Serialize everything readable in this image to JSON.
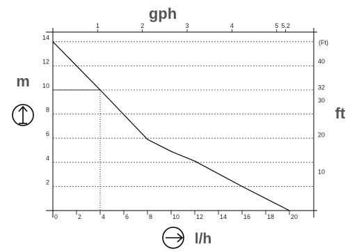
{
  "chart_data": {
    "type": "line",
    "x_bottom_label": "l/h",
    "x_top_label": "gph",
    "y_left_label": "m",
    "y_right_label": "ft",
    "y_right_unit": "(Ft)",
    "x_bottom_ticks": [
      "0",
      "2",
      "4",
      "6",
      "8",
      "10",
      "12",
      "14",
      "16",
      "18",
      "20"
    ],
    "x_top_ticks": [
      "1",
      "2",
      "3",
      "4",
      "5",
      "5.2"
    ],
    "y_left_ticks": [
      "2",
      "4",
      "6",
      "8",
      "10",
      "12",
      "14"
    ],
    "y_right_ticks": [
      "10",
      "20",
      "30",
      "32",
      "40"
    ],
    "xlim": [
      0,
      21.5
    ],
    "ylim": [
      0,
      14
    ],
    "grid": true,
    "series": [
      {
        "x": [
          0,
          4,
          8,
          10,
          12,
          16,
          20
        ],
        "y": [
          14,
          10,
          5.9,
          4.9,
          4.1,
          2.0,
          0
        ]
      }
    ],
    "reference": {
      "x": 4,
      "y": 10
    }
  }
}
